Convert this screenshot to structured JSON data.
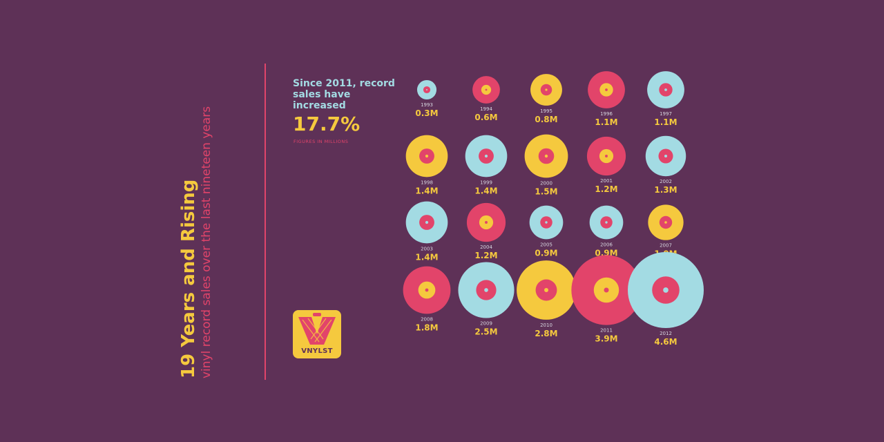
{
  "title": "19 Years and Rising",
  "subtitle": "vinyl record sales over the last nineteen years",
  "headline": "Since 2011, record sales have increased",
  "increase": "17.7%",
  "note": "FIGURES IN MILLIONS",
  "logo_text": "VNYLST",
  "colors": {
    "background": "#5e3157",
    "yellow": "#f5c93e",
    "pink": "#e2446a",
    "blue": "#a3dbe3"
  },
  "chart_data": {
    "type": "bubble",
    "unit": "M",
    "records": [
      {
        "year": "1993",
        "value": 0.3,
        "label": "0.3M",
        "color": "blue"
      },
      {
        "year": "1994",
        "value": 0.6,
        "label": "0.6M",
        "color": "pink"
      },
      {
        "year": "1995",
        "value": 0.8,
        "label": "0.8M",
        "color": "yellow"
      },
      {
        "year": "1996",
        "value": 1.1,
        "label": "1.1M",
        "color": "pink"
      },
      {
        "year": "1997",
        "value": 1.1,
        "label": "1.1M",
        "color": "blue"
      },
      {
        "year": "1998",
        "value": 1.4,
        "label": "1.4M",
        "color": "yellow"
      },
      {
        "year": "1999",
        "value": 1.4,
        "label": "1.4M",
        "color": "blue"
      },
      {
        "year": "2000",
        "value": 1.5,
        "label": "1.5M",
        "color": "yellow"
      },
      {
        "year": "2001",
        "value": 1.2,
        "label": "1.2M",
        "color": "pink"
      },
      {
        "year": "2002",
        "value": 1.3,
        "label": "1.3M",
        "color": "blue"
      },
      {
        "year": "2003",
        "value": 1.4,
        "label": "1.4M",
        "color": "blue"
      },
      {
        "year": "2004",
        "value": 1.2,
        "label": "1.2M",
        "color": "pink"
      },
      {
        "year": "2005",
        "value": 0.9,
        "label": "0.9M",
        "color": "blue"
      },
      {
        "year": "2006",
        "value": 0.9,
        "label": "0.9M",
        "color": "blue"
      },
      {
        "year": "2007",
        "value": 1.0,
        "label": "1.0M",
        "color": "yellow"
      },
      {
        "year": "2008",
        "value": 1.8,
        "label": "1.8M",
        "color": "pink"
      },
      {
        "year": "2009",
        "value": 2.5,
        "label": "2.5M",
        "color": "blue"
      },
      {
        "year": "2010",
        "value": 2.8,
        "label": "2.8M",
        "color": "yellow"
      },
      {
        "year": "2011",
        "value": 3.9,
        "label": "3.9M",
        "color": "pink"
      },
      {
        "year": "2012",
        "value": 4.6,
        "label": "4.6M",
        "color": "blue"
      }
    ]
  }
}
